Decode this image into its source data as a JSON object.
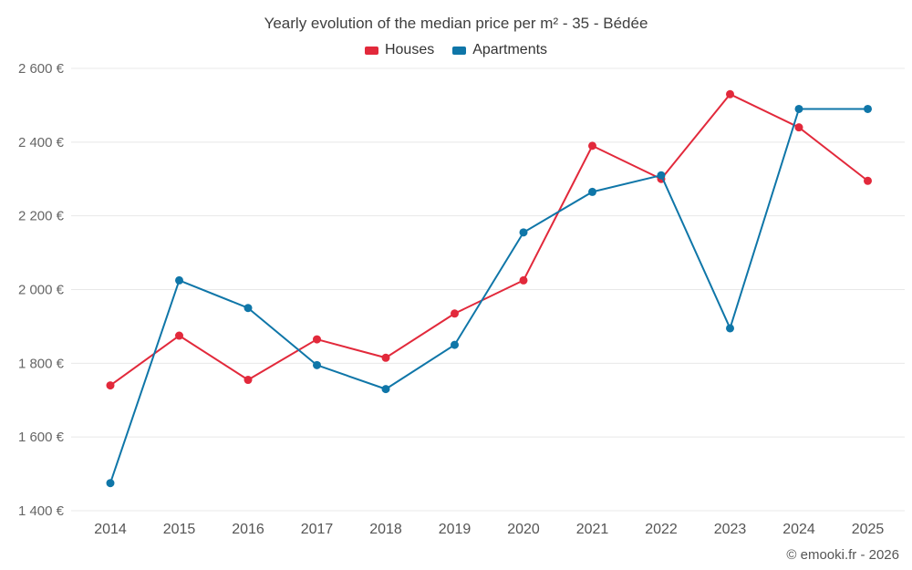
{
  "header": {
    "title": "Yearly evolution of the median price per m² - 35 - Bédée"
  },
  "footer": {
    "attribution": "© emooki.fr - 2026"
  },
  "chart_data": {
    "type": "line",
    "title": "Yearly evolution of the median price per m² - 35 - Bédée",
    "categories": [
      "2014",
      "2015",
      "2016",
      "2017",
      "2018",
      "2019",
      "2020",
      "2021",
      "2022",
      "2023",
      "2024",
      "2025"
    ],
    "series": [
      {
        "name": "Houses",
        "color": "#e2293b",
        "values": [
          1740,
          1875,
          1755,
          1865,
          1815,
          1935,
          2025,
          2390,
          2300,
          2530,
          2440,
          2295
        ]
      },
      {
        "name": "Apartments",
        "color": "#0f76a8",
        "values": [
          1475,
          2025,
          1950,
          1795,
          1730,
          1850,
          2155,
          2265,
          2310,
          1895,
          2490,
          2490
        ]
      }
    ],
    "xlabel": "",
    "ylabel": "",
    "ylim": [
      1400,
      2600
    ],
    "ytick_step": 200,
    "ytick_suffix": " €",
    "grid": "horizontal",
    "legend_position": "top"
  }
}
